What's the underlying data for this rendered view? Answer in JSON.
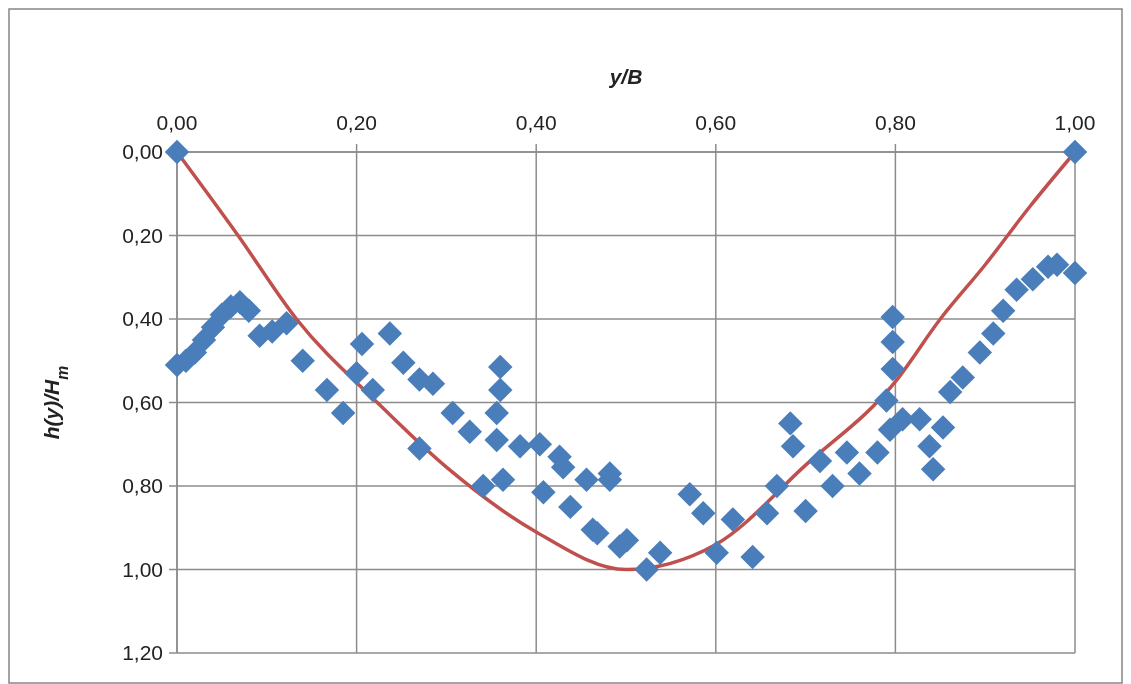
{
  "chart_data": {
    "type": "scatter",
    "xlabel": "y/B",
    "ylabel": "h(y)/H$_{m}$",
    "xlim": [
      0,
      1
    ],
    "ylim": [
      1.2,
      0
    ],
    "xticks": [
      {
        "value": 0,
        "label": "0,00"
      },
      {
        "value": 0.2,
        "label": "0,20"
      },
      {
        "value": 0.4,
        "label": "0,40"
      },
      {
        "value": 0.6,
        "label": "0,60"
      },
      {
        "value": 0.8,
        "label": "0,80"
      },
      {
        "value": 1,
        "label": "1,00"
      }
    ],
    "yticks": [
      {
        "value": 0,
        "label": "0,00"
      },
      {
        "value": 0.2,
        "label": "0,20"
      },
      {
        "value": 0.4,
        "label": "0,40"
      },
      {
        "value": 0.6,
        "label": "0,60"
      },
      {
        "value": 0.8,
        "label": "0,80"
      },
      {
        "value": 1,
        "label": "1,00"
      },
      {
        "value": 1.2,
        "label": "1,20"
      }
    ],
    "grid": true,
    "marker": "diamond",
    "series": [
      {
        "color": "#4a7ebb",
        "x": [
          0,
          1,
          0,
          0.01,
          0.02,
          0.03,
          0.04,
          0.05,
          0.06,
          0.07,
          0.08,
          0.092,
          0.106,
          0.122,
          0.14,
          0.167,
          0.185,
          0.2,
          0.206,
          0.218,
          0.237,
          0.252,
          0.27,
          0.27,
          0.285,
          0.307,
          0.326,
          0.341,
          0.36,
          0.36,
          0.356,
          0.356,
          0.382,
          0.363,
          0.404,
          0.408,
          0.43,
          0.438,
          0.456,
          0.468,
          0.482,
          0.493,
          0.426,
          0.463,
          0.482,
          0.501,
          0.523,
          0.538,
          0.571,
          0.586,
          0.601,
          0.619,
          0.641,
          0.657,
          0.668,
          0.683,
          0.686,
          0.7,
          0.716,
          0.73,
          0.746,
          0.76,
          0.78,
          0.794,
          0.797,
          0.797,
          0.797,
          0.79,
          0.808,
          0.827,
          0.838,
          0.842,
          0.853,
          0.861,
          0.875,
          0.894,
          0.909,
          0.92,
          0.935,
          0.953,
          0.97,
          0.98,
          1
        ],
        "values": [
          0,
          0,
          0.51,
          0.5,
          0.48,
          0.45,
          0.42,
          0.39,
          0.37,
          0.36,
          0.38,
          0.44,
          0.43,
          0.41,
          0.5,
          0.57,
          0.625,
          0.53,
          0.46,
          0.57,
          0.435,
          0.505,
          0.545,
          0.71,
          0.555,
          0.625,
          0.67,
          0.8,
          0.515,
          0.57,
          0.625,
          0.69,
          0.705,
          0.785,
          0.7,
          0.815,
          0.755,
          0.85,
          0.785,
          0.913,
          0.785,
          0.945,
          0.73,
          0.905,
          0.77,
          0.93,
          1,
          0.96,
          0.82,
          0.865,
          0.96,
          0.88,
          0.97,
          0.865,
          0.8,
          0.65,
          0.705,
          0.86,
          0.74,
          0.8,
          0.72,
          0.77,
          0.72,
          0.665,
          0.395,
          0.455,
          0.52,
          0.595,
          0.64,
          0.64,
          0.705,
          0.76,
          0.66,
          0.575,
          0.54,
          0.48,
          0.435,
          0.38,
          0.33,
          0.305,
          0.275,
          0.27,
          0.29
        ]
      },
      {
        "type": "line",
        "marker": "none",
        "color": "#c0504d",
        "x": [
          0,
          0.068,
          0.133,
          0.223,
          0.3,
          0.4,
          0.5,
          0.6,
          0.7,
          0.8,
          0.85,
          0.9,
          0.95,
          1
        ],
        "values": [
          0,
          0.2,
          0.4,
          0.6,
          0.755,
          0.91,
          1,
          0.94,
          0.75,
          0.55,
          0.4,
          0.27,
          0.13,
          0
        ]
      }
    ]
  }
}
